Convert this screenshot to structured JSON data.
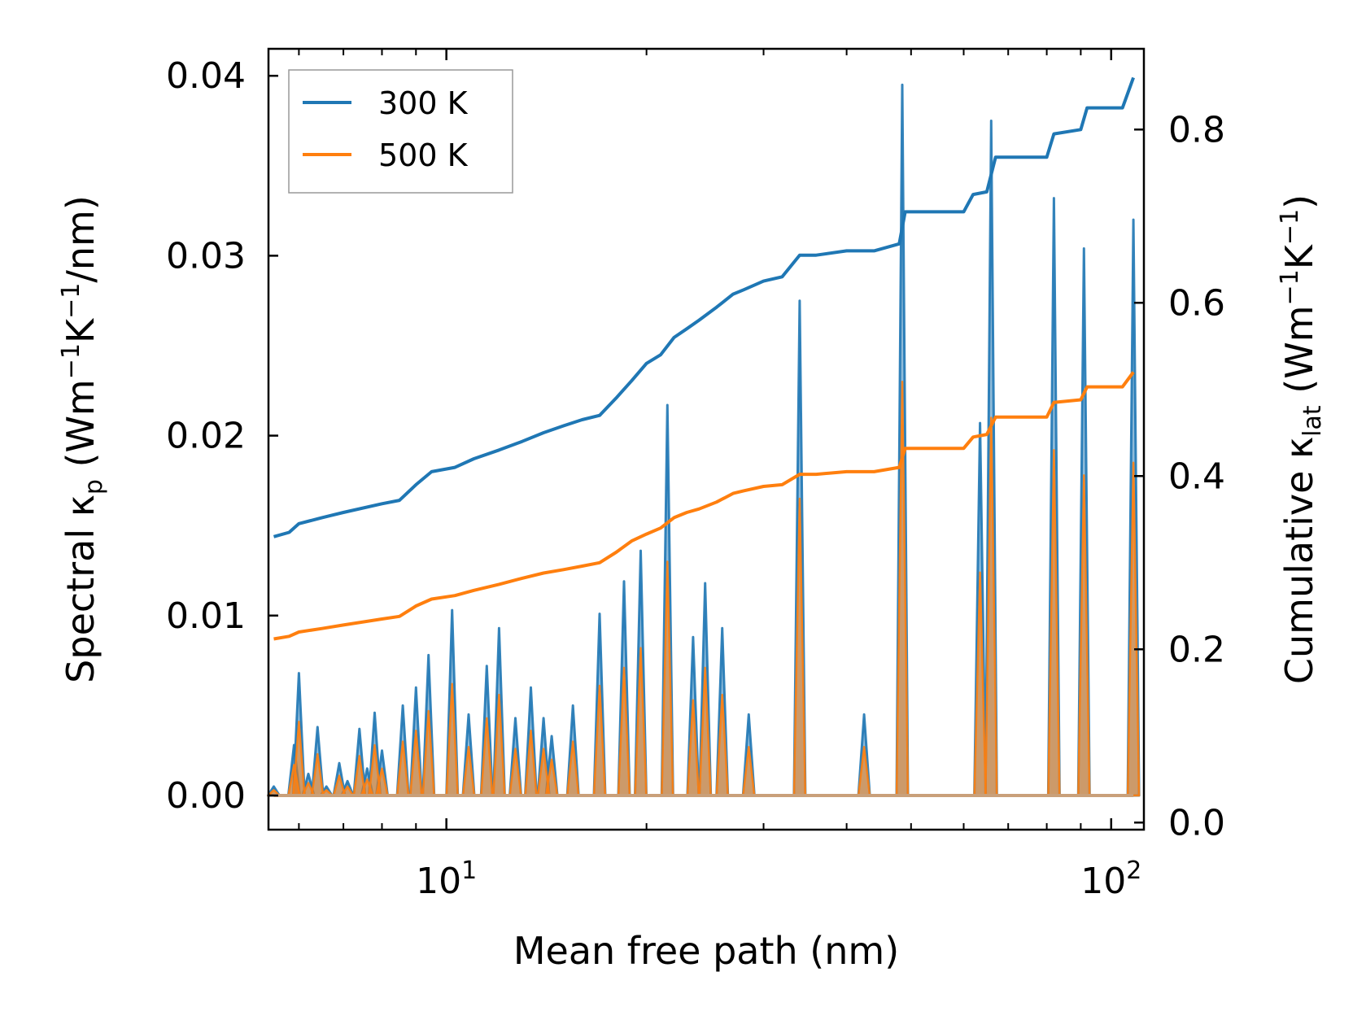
{
  "chart_data": {
    "type": "line",
    "xlabel": "Mean free path (nm)",
    "ylabel_left": {
      "main": "Spectral κ",
      "sub": "p",
      "pre_unit": " (Wm",
      "sup1": "−1",
      "mid": "K",
      "sup2": "−1",
      "post": "/nm)"
    },
    "ylabel_right": {
      "main": "Cumulative κ",
      "sub": "lat",
      "pre_unit": " (Wm",
      "sup1": "−1",
      "mid": "K",
      "sup2": "−1",
      "post": ")"
    },
    "xscale": "log",
    "xlim": [
      5.4,
      112
    ],
    "ylim_left": [
      -0.0019,
      0.0415
    ],
    "ylim_right": [
      -0.0082,
      0.8932
    ],
    "x_ticks_major": [
      {
        "value": 10,
        "base": "10",
        "exp": "1"
      },
      {
        "value": 100,
        "base": "10",
        "exp": "2"
      }
    ],
    "x_ticks_minor": [
      6,
      7,
      8,
      9,
      20,
      30,
      40,
      50,
      60,
      70,
      80,
      90
    ],
    "y_ticks_left": [
      {
        "value": 0,
        "label": "0.00"
      },
      {
        "value": 0.01,
        "label": "0.01"
      },
      {
        "value": 0.02,
        "label": "0.02"
      },
      {
        "value": 0.03,
        "label": "0.03"
      },
      {
        "value": 0.04,
        "label": "0.04"
      }
    ],
    "y_ticks_right": [
      {
        "value": 0,
        "label": "0.0"
      },
      {
        "value": 0.2,
        "label": "0.2"
      },
      {
        "value": 0.4,
        "label": "0.4"
      },
      {
        "value": 0.6,
        "label": "0.6"
      },
      {
        "value": 0.8,
        "label": "0.8"
      }
    ],
    "legend": {
      "position": "top-left",
      "entries": [
        {
          "label": "300 K",
          "color": "#1f77b4"
        },
        {
          "label": "500 K",
          "color": "#ff7f0e"
        }
      ]
    },
    "series": [
      {
        "name": "300 K",
        "color": "#1f77b4",
        "spectral_peaks": [
          [
            5.5,
            0.0005
          ],
          [
            5.9,
            0.0028
          ],
          [
            6.0,
            0.0068
          ],
          [
            6.2,
            0.0012
          ],
          [
            6.4,
            0.0038
          ],
          [
            6.6,
            0.0005
          ],
          [
            6.9,
            0.0018
          ],
          [
            7.1,
            0.0008
          ],
          [
            7.4,
            0.0037
          ],
          [
            7.6,
            0.0015
          ],
          [
            7.8,
            0.0046
          ],
          [
            8.0,
            0.0025
          ],
          [
            8.6,
            0.005
          ],
          [
            9.0,
            0.006
          ],
          [
            9.4,
            0.0078
          ],
          [
            10.2,
            0.0103
          ],
          [
            10.8,
            0.0045
          ],
          [
            11.5,
            0.0072
          ],
          [
            12.0,
            0.0093
          ],
          [
            12.7,
            0.0043
          ],
          [
            13.4,
            0.006
          ],
          [
            14.0,
            0.0043
          ],
          [
            14.4,
            0.0033
          ],
          [
            15.5,
            0.005
          ],
          [
            17.0,
            0.0101
          ],
          [
            18.5,
            0.0119
          ],
          [
            19.6,
            0.0136
          ],
          [
            21.5,
            0.0217
          ],
          [
            23.5,
            0.0088
          ],
          [
            24.5,
            0.0118
          ],
          [
            26.0,
            0.0093
          ],
          [
            28.5,
            0.0045
          ],
          [
            34.0,
            0.0275
          ],
          [
            42.5,
            0.0045
          ],
          [
            48.5,
            0.0395
          ],
          [
            63.5,
            0.0207
          ],
          [
            66.0,
            0.0375
          ],
          [
            82.0,
            0.0332
          ],
          [
            91.0,
            0.0304
          ],
          [
            108.0,
            0.032
          ]
        ],
        "cumulative": [
          [
            5.5,
            0.33
          ],
          [
            5.8,
            0.335
          ],
          [
            6.0,
            0.345
          ],
          [
            6.5,
            0.352
          ],
          [
            7.0,
            0.358
          ],
          [
            8.0,
            0.368
          ],
          [
            8.5,
            0.372
          ],
          [
            9.0,
            0.39
          ],
          [
            9.5,
            0.405
          ],
          [
            10.3,
            0.41
          ],
          [
            11.0,
            0.42
          ],
          [
            12.0,
            0.43
          ],
          [
            13.0,
            0.44
          ],
          [
            14.0,
            0.45
          ],
          [
            15.0,
            0.458
          ],
          [
            16.0,
            0.465
          ],
          [
            17.0,
            0.47
          ],
          [
            18.0,
            0.49
          ],
          [
            19.0,
            0.51
          ],
          [
            20.0,
            0.53
          ],
          [
            21.0,
            0.54
          ],
          [
            22.0,
            0.56
          ],
          [
            23.0,
            0.57
          ],
          [
            24.0,
            0.58
          ],
          [
            25.5,
            0.595
          ],
          [
            27.0,
            0.61
          ],
          [
            28.0,
            0.615
          ],
          [
            30.0,
            0.625
          ],
          [
            32.0,
            0.63
          ],
          [
            34.0,
            0.655
          ],
          [
            36.0,
            0.655
          ],
          [
            40.0,
            0.66
          ],
          [
            44.0,
            0.66
          ],
          [
            48.0,
            0.668
          ],
          [
            49.0,
            0.705
          ],
          [
            60.0,
            0.705
          ],
          [
            62.0,
            0.725
          ],
          [
            65.0,
            0.728
          ],
          [
            67.0,
            0.768
          ],
          [
            80.0,
            0.768
          ],
          [
            82.0,
            0.795
          ],
          [
            90.0,
            0.8
          ],
          [
            92.0,
            0.825
          ],
          [
            104.0,
            0.825
          ],
          [
            108.0,
            0.86
          ]
        ]
      },
      {
        "name": "500 K",
        "color": "#ff7f0e",
        "spectral_peaks": [
          [
            5.5,
            0.0003
          ],
          [
            5.9,
            0.0017
          ],
          [
            6.0,
            0.0041
          ],
          [
            6.2,
            0.0007
          ],
          [
            6.4,
            0.0023
          ],
          [
            6.6,
            0.0003
          ],
          [
            6.9,
            0.0011
          ],
          [
            7.1,
            0.0005
          ],
          [
            7.4,
            0.0022
          ],
          [
            7.6,
            0.0009
          ],
          [
            7.8,
            0.0028
          ],
          [
            8.0,
            0.0015
          ],
          [
            8.6,
            0.003
          ],
          [
            9.0,
            0.0036
          ],
          [
            9.4,
            0.0047
          ],
          [
            10.2,
            0.0062
          ],
          [
            10.8,
            0.0027
          ],
          [
            11.5,
            0.0043
          ],
          [
            12.0,
            0.0056
          ],
          [
            12.7,
            0.0026
          ],
          [
            13.4,
            0.0036
          ],
          [
            14.0,
            0.0026
          ],
          [
            14.4,
            0.002
          ],
          [
            15.5,
            0.003
          ],
          [
            17.0,
            0.0061
          ],
          [
            18.5,
            0.0071
          ],
          [
            19.6,
            0.0082
          ],
          [
            21.5,
            0.013
          ],
          [
            23.5,
            0.0053
          ],
          [
            24.5,
            0.0071
          ],
          [
            26.0,
            0.0056
          ],
          [
            28.5,
            0.0027
          ],
          [
            34.0,
            0.0165
          ],
          [
            42.5,
            0.0027
          ],
          [
            48.5,
            0.023
          ],
          [
            63.5,
            0.0124
          ],
          [
            66.0,
            0.021
          ],
          [
            82.0,
            0.0192
          ],
          [
            91.0,
            0.0178
          ],
          [
            108.0,
            0.0185
          ]
        ],
        "cumulative": [
          [
            5.5,
            0.212
          ],
          [
            5.8,
            0.215
          ],
          [
            6.0,
            0.22
          ],
          [
            6.5,
            0.224
          ],
          [
            7.0,
            0.228
          ],
          [
            8.0,
            0.235
          ],
          [
            8.5,
            0.238
          ],
          [
            9.0,
            0.25
          ],
          [
            9.5,
            0.258
          ],
          [
            10.3,
            0.262
          ],
          [
            11.0,
            0.268
          ],
          [
            12.0,
            0.275
          ],
          [
            13.0,
            0.282
          ],
          [
            14.0,
            0.288
          ],
          [
            15.0,
            0.292
          ],
          [
            16.0,
            0.296
          ],
          [
            17.0,
            0.3
          ],
          [
            18.0,
            0.312
          ],
          [
            19.0,
            0.325
          ],
          [
            20.0,
            0.333
          ],
          [
            21.0,
            0.34
          ],
          [
            22.0,
            0.352
          ],
          [
            23.0,
            0.358
          ],
          [
            24.0,
            0.362
          ],
          [
            25.5,
            0.37
          ],
          [
            27.0,
            0.38
          ],
          [
            28.0,
            0.383
          ],
          [
            30.0,
            0.388
          ],
          [
            32.0,
            0.39
          ],
          [
            34.0,
            0.402
          ],
          [
            36.0,
            0.402
          ],
          [
            40.0,
            0.405
          ],
          [
            44.0,
            0.405
          ],
          [
            48.0,
            0.41
          ],
          [
            49.0,
            0.432
          ],
          [
            60.0,
            0.432
          ],
          [
            62.0,
            0.445
          ],
          [
            65.0,
            0.448
          ],
          [
            67.0,
            0.468
          ],
          [
            80.0,
            0.468
          ],
          [
            82.0,
            0.485
          ],
          [
            90.0,
            0.488
          ],
          [
            92.0,
            0.503
          ],
          [
            104.0,
            0.503
          ],
          [
            108.0,
            0.52
          ]
        ]
      }
    ]
  }
}
